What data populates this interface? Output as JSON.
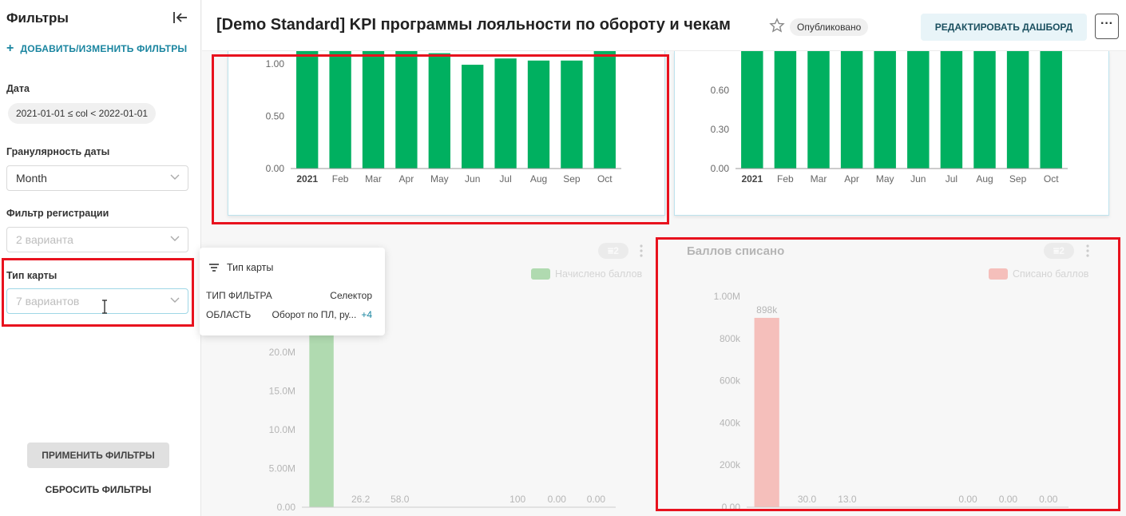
{
  "sidebar": {
    "title": "Фильтры",
    "add_filters_label": "ДОБАВИТЬ/ИЗМЕНИТЬ ФИЛЬТРЫ",
    "date_label": "Дата",
    "date_value": "2021-01-01 ≤ col < 2022-01-01",
    "granularity_label": "Гранулярность даты",
    "granularity_value": "Month",
    "reg_filter_label": "Фильтр регистрации",
    "reg_filter_value": "2 варианта",
    "card_type_label": "Тип карты",
    "card_type_value": "7 вариантов",
    "apply_label": "ПРИМЕНИТЬ ФИЛЬТРЫ",
    "reset_label": "СБРОСИТЬ ФИЛЬТРЫ"
  },
  "header": {
    "title": "[Demo Standard] KPI программы лояльности по обороту и чекам",
    "status_badge": "Опубликовано",
    "edit_label": "РЕДАКТИРОВАТЬ ДАШБОРД",
    "more_label": "···"
  },
  "popover": {
    "title": "Тип карты",
    "rows": [
      {
        "key": "ТИП ФИЛЬТРА",
        "value": "Селектор",
        "more": ""
      },
      {
        "key": "ОБЛАСТЬ",
        "value": "Оборот по ПЛ, ру...",
        "more": "+4"
      }
    ]
  },
  "cards": {
    "bottom_left": {
      "title": "",
      "filter_count": "2",
      "legend": "Начислено баллов"
    },
    "bottom_right": {
      "title": "Баллов списано",
      "filter_count": "2",
      "legend": "Списано баллов"
    }
  },
  "colors": {
    "green": "#00b060",
    "light_green": "#a8d8a8",
    "salmon": "#f8b4b0",
    "accent": "#1a85a0",
    "highlight": "#e8121e"
  },
  "chart_data": [
    {
      "type": "bar",
      "categories": [
        "2021",
        "Feb",
        "Mar",
        "Apr",
        "May",
        "Jun",
        "Jul",
        "Aug",
        "Sep",
        "Oct"
      ],
      "values": [
        1.12,
        1.12,
        1.12,
        1.12,
        1.1,
        0.99,
        1.05,
        1.03,
        1.03,
        1.12
      ],
      "yticks": [
        "0.00",
        "0.50",
        "1.00"
      ],
      "ylim": [
        0,
        1.12
      ]
    },
    {
      "type": "bar",
      "categories": [
        "2021",
        "Feb",
        "Mar",
        "Apr",
        "May",
        "Jun",
        "Jul",
        "Aug",
        "Sep",
        "Oct"
      ],
      "values": [
        0.9,
        0.9,
        0.9,
        0.9,
        0.9,
        0.9,
        0.9,
        0.9,
        0.9,
        0.9
      ],
      "yticks": [
        "0.00",
        "0.30",
        "0.60"
      ],
      "ylim": [
        0,
        0.9
      ]
    },
    {
      "type": "bar",
      "series": [
        {
          "name": "Начислено баллов",
          "values": [
            24000000,
            26.2,
            58.0,
            0,
            0,
            100,
            0.0,
            0.0
          ]
        }
      ],
      "data_labels": [
        "",
        "26.2",
        "58.0",
        "",
        "",
        "100",
        "0.00",
        "0.00"
      ],
      "yticks": [
        "0.00",
        "5.00M",
        "10.0M",
        "15.0M",
        "20.0M"
      ],
      "ylim": [
        0,
        24000000
      ]
    },
    {
      "type": "bar",
      "title": "Баллов списано",
      "series": [
        {
          "name": "Списано баллов",
          "values": [
            898000,
            30.0,
            13.0,
            0,
            0,
            0.0,
            0.0,
            0.0
          ]
        }
      ],
      "data_labels": [
        "898k",
        "30.0",
        "13.0",
        "",
        "",
        "0.00",
        "0.00",
        "0.00"
      ],
      "yticks": [
        "0.00",
        "200k",
        "400k",
        "600k",
        "800k",
        "1.00M"
      ],
      "ylim": [
        0,
        1000000
      ]
    }
  ]
}
